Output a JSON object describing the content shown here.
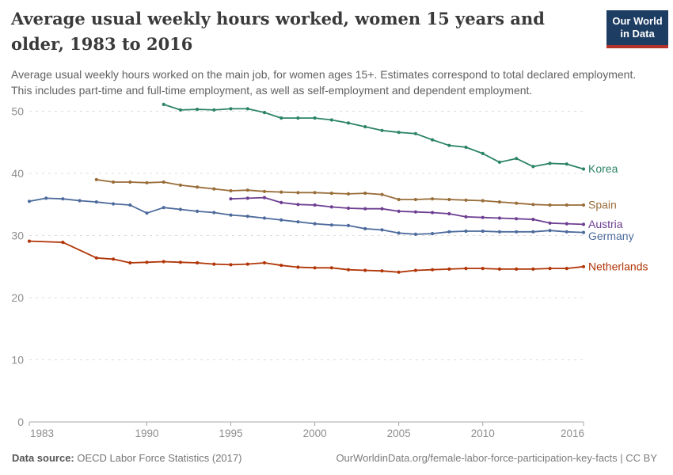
{
  "header": {
    "title": "Average usual weekly hours worked, women 15 years and older, 1983 to 2016",
    "subtitle": "Average usual weekly hours worked on the main job, for women ages 15+. Estimates correspond to total declared employment. This includes part-time and full-time employment, as well as self-employment and dependent employment.",
    "logo": {
      "line1": "Our World",
      "line2": "in Data",
      "bg_color": "#1d3d63",
      "accent_color": "#b5332a"
    }
  },
  "chart_data": {
    "type": "line",
    "title": "Average usual weekly hours worked, women 15 years and older, 1983 to 2016",
    "xlabel": "",
    "ylabel": "",
    "x_range": [
      1983,
      2016
    ],
    "ylim": [
      0,
      52
    ],
    "x_ticks": [
      1983,
      1990,
      1995,
      2000,
      2005,
      2010,
      2016
    ],
    "y_ticks": [
      0,
      10,
      20,
      30,
      40,
      50
    ],
    "grid": "horizontal dashed",
    "legend_position": "line-end labels",
    "marker": "dot",
    "axis_color": "#a8a8a8",
    "grid_color": "#dcdcdc",
    "tick_label_color": "#8e8e8e",
    "series": [
      {
        "name": "Korea",
        "color": "#2C8465",
        "years": [
          1991,
          1992,
          1993,
          1994,
          1995,
          1996,
          1997,
          1998,
          1999,
          2000,
          2001,
          2002,
          2003,
          2004,
          2005,
          2006,
          2007,
          2008,
          2009,
          2010,
          2011,
          2012,
          2013,
          2014,
          2015,
          2016
        ],
        "values": [
          51.1,
          50.2,
          50.3,
          50.2,
          50.4,
          50.4,
          49.8,
          48.9,
          48.9,
          48.9,
          48.6,
          48.1,
          47.5,
          46.9,
          46.6,
          46.4,
          45.4,
          44.5,
          44.2,
          43.2,
          41.8,
          42.4,
          41.1,
          41.6,
          41.5,
          40.7
        ]
      },
      {
        "name": "Spain",
        "color": "#996D39",
        "years": [
          1987,
          1988,
          1989,
          1990,
          1991,
          1992,
          1993,
          1994,
          1995,
          1996,
          1997,
          1998,
          1999,
          2000,
          2001,
          2002,
          2003,
          2004,
          2005,
          2006,
          2007,
          2008,
          2009,
          2010,
          2011,
          2012,
          2013,
          2014,
          2015,
          2016
        ],
        "values": [
          39.0,
          38.6,
          38.6,
          38.5,
          38.6,
          38.1,
          37.8,
          37.5,
          37.2,
          37.3,
          37.1,
          37.0,
          36.9,
          36.9,
          36.8,
          36.7,
          36.8,
          36.6,
          35.8,
          35.8,
          35.9,
          35.8,
          35.7,
          35.6,
          35.4,
          35.2,
          35.0,
          34.9,
          34.9,
          34.9
        ]
      },
      {
        "name": "Austria",
        "color": "#6D3E91",
        "years": [
          1995,
          1996,
          1997,
          1998,
          1999,
          2000,
          2001,
          2002,
          2003,
          2004,
          2005,
          2006,
          2007,
          2008,
          2009,
          2010,
          2011,
          2012,
          2013,
          2014,
          2015,
          2016
        ],
        "values": [
          35.9,
          36.0,
          36.1,
          35.3,
          35.0,
          34.9,
          34.6,
          34.4,
          34.3,
          34.3,
          33.9,
          33.8,
          33.7,
          33.5,
          33.0,
          32.9,
          32.8,
          32.7,
          32.6,
          32.0,
          31.9,
          31.8
        ]
      },
      {
        "name": "Germany",
        "color": "#4C6A9C",
        "years": [
          1983,
          1984,
          1985,
          1986,
          1987,
          1988,
          1989,
          1990,
          1991,
          1992,
          1993,
          1994,
          1995,
          1996,
          1997,
          1998,
          1999,
          2000,
          2001,
          2002,
          2003,
          2004,
          2005,
          2006,
          2007,
          2008,
          2009,
          2010,
          2011,
          2012,
          2013,
          2014,
          2015,
          2016
        ],
        "values": [
          35.5,
          36.0,
          35.9,
          35.6,
          35.4,
          35.1,
          34.9,
          33.6,
          34.5,
          34.2,
          33.9,
          33.7,
          33.3,
          33.1,
          32.8,
          32.5,
          32.2,
          31.9,
          31.7,
          31.6,
          31.1,
          30.9,
          30.4,
          30.2,
          30.3,
          30.6,
          30.7,
          30.7,
          30.6,
          30.6,
          30.6,
          30.8,
          30.6,
          30.5
        ]
      },
      {
        "name": "Netherlands",
        "color": "#B13507",
        "years": [
          1983,
          1985,
          1987,
          1988,
          1989,
          1990,
          1991,
          1992,
          1993,
          1994,
          1995,
          1996,
          1997,
          1998,
          1999,
          2000,
          2001,
          2002,
          2003,
          2004,
          2005,
          2006,
          2007,
          2008,
          2009,
          2010,
          2011,
          2012,
          2013,
          2014,
          2015,
          2016
        ],
        "values": [
          29.1,
          28.9,
          26.4,
          26.2,
          25.6,
          25.7,
          25.8,
          25.7,
          25.6,
          25.4,
          25.3,
          25.4,
          25.6,
          25.2,
          24.9,
          24.8,
          24.8,
          24.5,
          24.4,
          24.3,
          24.1,
          24.4,
          24.5,
          24.6,
          24.7,
          24.7,
          24.6,
          24.6,
          24.6,
          24.7,
          24.7,
          25.0
        ]
      }
    ]
  },
  "footer": {
    "source_label": "Data source:",
    "source_value": " OECD Labor Force Statistics (2017)",
    "credit": "OurWorldinData.org/female-labor-force-participation-key-facts | CC BY"
  }
}
